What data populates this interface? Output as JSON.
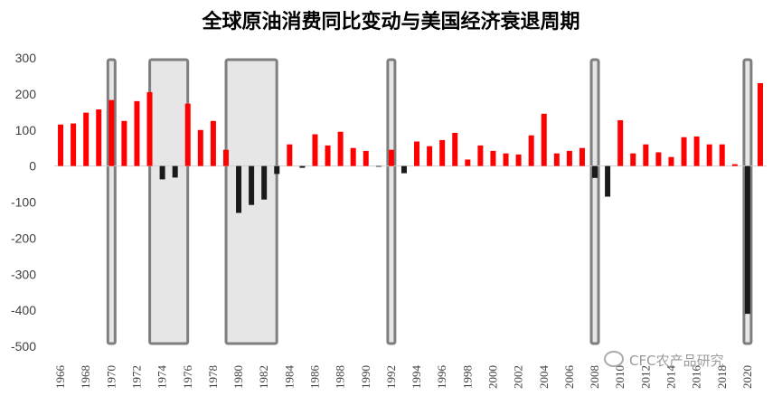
{
  "chart_data": {
    "type": "bar",
    "title": "全球原油消费同比变动与美国经济衰退周期",
    "ylim": [
      -500,
      300
    ],
    "yticks": [
      300,
      200,
      100,
      0,
      -100,
      -200,
      -300,
      -400,
      -500
    ],
    "grid": false,
    "legend": "none",
    "colors": {
      "positive": "#ff0000",
      "negative": "#1a1a1a",
      "recession_fill": "#e6e6e6",
      "recession_edge": "#7f7f7f"
    },
    "x_tick_labels": [
      "1966",
      "1968",
      "1970",
      "1972",
      "1974",
      "1976",
      "1978",
      "1980",
      "1982",
      "1984",
      "1986",
      "1988",
      "1990",
      "1992",
      "1994",
      "1996",
      "1998",
      "2000",
      "2002",
      "2004",
      "2006",
      "2008",
      "2010",
      "2012",
      "2014",
      "2016",
      "2018",
      "2020"
    ],
    "years": [
      1966,
      1967,
      1968,
      1969,
      1970,
      1971,
      1972,
      1973,
      1974,
      1975,
      1976,
      1977,
      1978,
      1979,
      1980,
      1981,
      1982,
      1983,
      1984,
      1985,
      1986,
      1987,
      1988,
      1989,
      1990,
      1991,
      1992,
      1993,
      1994,
      1995,
      1996,
      1997,
      1998,
      1999,
      2000,
      2001,
      2002,
      2003,
      2004,
      2005,
      2006,
      2007,
      2008,
      2009,
      2010,
      2011,
      2012,
      2013,
      2014,
      2015,
      2016,
      2017,
      2018,
      2019,
      2020,
      2021
    ],
    "values": [
      115,
      118,
      148,
      157,
      183,
      125,
      180,
      205,
      -37,
      -32,
      173,
      100,
      125,
      45,
      -130,
      -108,
      -93,
      -22,
      60,
      -5,
      88,
      57,
      95,
      50,
      42,
      -2,
      45,
      -20,
      68,
      55,
      72,
      92,
      18,
      57,
      42,
      35,
      32,
      85,
      145,
      35,
      42,
      50,
      -33,
      -85,
      127,
      35,
      60,
      38,
      25,
      80,
      82,
      60,
      60,
      5,
      -410,
      230
    ],
    "recessions": [
      [
        1970,
        1970
      ],
      [
        1974,
        1975
      ],
      [
        1980,
        1982
      ],
      [
        1992,
        1992
      ],
      [
        2008,
        2008
      ],
      [
        2020,
        2020
      ]
    ],
    "watermark": "CFC农产品研究"
  }
}
